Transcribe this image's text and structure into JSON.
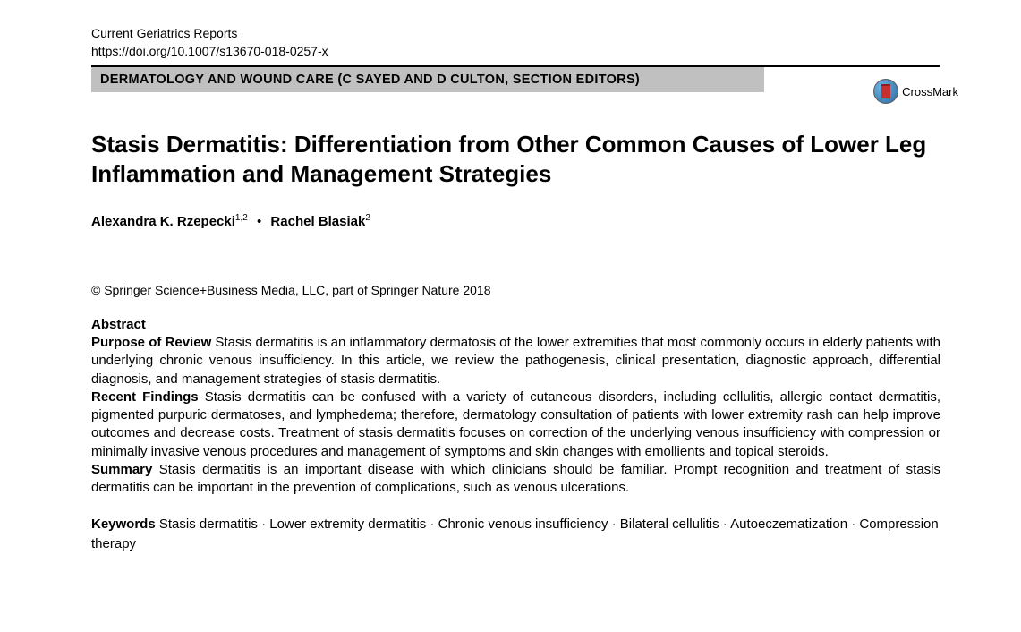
{
  "journal": {
    "name": "Current Geriatrics Reports",
    "doi": "https://doi.org/10.1007/s13670-018-0257-x"
  },
  "section_banner": "DERMATOLOGY AND WOUND CARE (C SAYED AND D CULTON, SECTION EDITORS)",
  "crossmark_label": "CrossMark",
  "title": "Stasis Dermatitis: Differentiation from Other Common Causes of Lower Leg Inflammation and Management Strategies",
  "authors": [
    {
      "name": "Alexandra K. Rzepecki",
      "affil": "1,2"
    },
    {
      "name": "Rachel Blasiak",
      "affil": "2"
    }
  ],
  "copyright": "© Springer Science+Business Media, LLC, part of Springer Nature 2018",
  "abstract": {
    "heading": "Abstract",
    "purpose_label": "Purpose of Review",
    "purpose_text": " Stasis dermatitis is an inflammatory dermatosis of the lower extremities that most commonly occurs in elderly patients with underlying chronic venous insufficiency. In this article, we review the pathogenesis, clinical presentation, diagnostic approach, differential diagnosis, and management strategies of stasis dermatitis.",
    "findings_label": "Recent Findings",
    "findings_text": " Stasis dermatitis can be confused with a variety of cutaneous disorders, including cellulitis, allergic contact dermatitis, pigmented purpuric dermatoses, and lymphedema; therefore, dermatology consultation of patients with lower extremity rash can help improve outcomes and decrease costs. Treatment of stasis dermatitis focuses on correction of the underlying venous insufficiency with compression or minimally invasive venous procedures and management of symptoms and skin changes with emollients and topical steroids.",
    "summary_label": "Summary",
    "summary_text": " Stasis dermatitis is an important disease with which clinicians should be familiar. Prompt recognition and treatment of stasis dermatitis can be important in the prevention of complications, such as venous ulcerations."
  },
  "keywords": {
    "label": "Keywords",
    "items": [
      "Stasis dermatitis",
      "Lower extremity dermatitis",
      "Chronic venous insufficiency",
      "Bilateral cellulitis",
      "Autoeczematization",
      "Compression therapy"
    ]
  },
  "colors": {
    "banner_bg": "#c0c0c0",
    "text": "#000000",
    "rule": "#000000",
    "crossmark_red": "#c73030"
  }
}
